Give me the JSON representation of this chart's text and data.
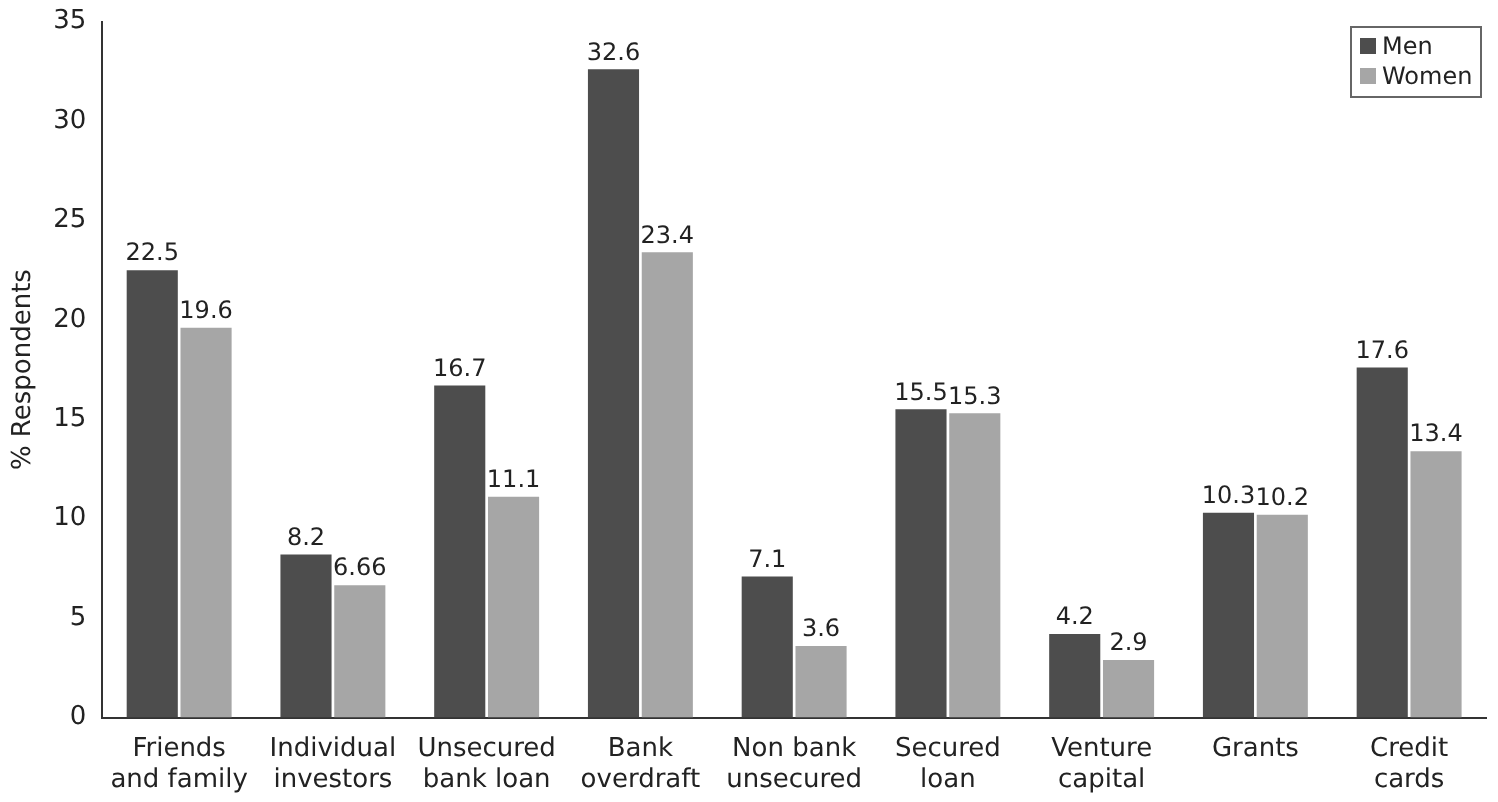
{
  "chart_data": {
    "type": "bar",
    "ylabel": "% Respondents",
    "categories": [
      "Friends\nand family",
      "Individual\ninvestors",
      "Unsecured\nbank loan",
      "Bank\noverdraft",
      "Non bank\nunsecured",
      "Secured\nloan",
      "Venture\ncapital",
      "Grants",
      "Credit\ncards"
    ],
    "series": [
      {
        "name": "Men",
        "color": "#4d4d4d",
        "values": [
          22.5,
          8.2,
          16.7,
          32.6,
          7.1,
          15.5,
          4.2,
          10.3,
          17.6
        ]
      },
      {
        "name": "Women",
        "color": "#a6a6a6",
        "values": [
          19.6,
          6.66,
          11.1,
          23.4,
          3.6,
          15.3,
          2.9,
          10.2,
          13.4
        ]
      }
    ],
    "ylim": [
      0,
      35
    ],
    "yticks": [
      0,
      5,
      10,
      15,
      20,
      25,
      30,
      35
    ],
    "grid": false,
    "legend": "top right",
    "data_labels": true
  }
}
